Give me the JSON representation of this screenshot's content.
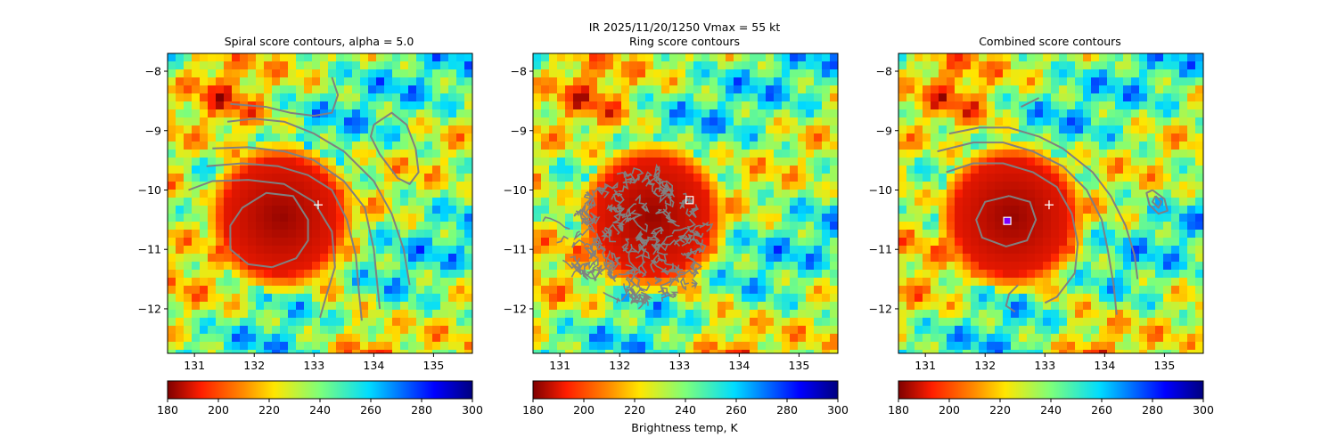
{
  "figure": {
    "suptitle_line1": "IR  2025/11/20/1250    Vmax = 55 kt",
    "colorbar_label": "Brightness temp, K"
  },
  "chart_data": [
    {
      "type": "heatmap",
      "title": "Spiral score contours, alpha =  5.0",
      "xlim": [
        130.55,
        135.65
      ],
      "ylim": [
        -12.75,
        -7.7
      ],
      "xticks": [
        131,
        132,
        133,
        134,
        135
      ],
      "yticks": [
        -8,
        -9,
        -10,
        -11,
        -12
      ],
      "colorbar": {
        "vmin": 180,
        "vmax": 300,
        "ticks": [
          180,
          200,
          220,
          240,
          260,
          280,
          300
        ],
        "colormap": "jet_r"
      },
      "markers": [
        {
          "type": "plus",
          "x": 133.07,
          "y": -10.25,
          "color": "#ffffff"
        }
      ],
      "cold_core_center": [
        132.45,
        -10.45
      ],
      "contour_color": "#808080",
      "contours": [
        [
          [
            132.3,
            -11.3
          ],
          [
            131.9,
            -11.25
          ],
          [
            131.6,
            -11.0
          ],
          [
            131.6,
            -10.6
          ],
          [
            131.8,
            -10.3
          ],
          [
            132.2,
            -10.05
          ],
          [
            132.65,
            -10.1
          ],
          [
            132.9,
            -10.5
          ],
          [
            132.9,
            -10.85
          ],
          [
            132.7,
            -11.15
          ],
          [
            132.3,
            -11.3
          ]
        ],
        [
          [
            130.9,
            -10.0
          ],
          [
            131.3,
            -9.85
          ],
          [
            131.9,
            -9.83
          ],
          [
            132.5,
            -9.9
          ],
          [
            133.0,
            -10.2
          ],
          [
            133.3,
            -10.7
          ],
          [
            133.35,
            -11.3
          ],
          [
            133.2,
            -11.8
          ],
          [
            133.1,
            -12.15
          ]
        ],
        [
          [
            131.2,
            -9.6
          ],
          [
            131.8,
            -9.55
          ],
          [
            132.4,
            -9.6
          ],
          [
            132.9,
            -9.75
          ],
          [
            133.3,
            -10.0
          ],
          [
            133.55,
            -10.5
          ],
          [
            133.7,
            -11.1
          ],
          [
            133.75,
            -11.7
          ],
          [
            133.8,
            -12.2
          ]
        ],
        [
          [
            131.3,
            -9.3
          ],
          [
            131.9,
            -9.28
          ],
          [
            132.5,
            -9.35
          ],
          [
            133.0,
            -9.5
          ],
          [
            133.5,
            -9.85
          ],
          [
            133.85,
            -10.3
          ],
          [
            134.0,
            -11.0
          ],
          [
            134.05,
            -11.5
          ],
          [
            134.1,
            -12.0
          ]
        ],
        [
          [
            131.55,
            -8.85
          ],
          [
            132.0,
            -8.8
          ],
          [
            132.5,
            -8.85
          ],
          [
            133.0,
            -9.05
          ],
          [
            133.5,
            -9.35
          ],
          [
            134.0,
            -9.85
          ],
          [
            134.3,
            -10.4
          ],
          [
            134.5,
            -11.0
          ],
          [
            134.6,
            -11.6
          ]
        ],
        [
          [
            131.6,
            -8.55
          ],
          [
            132.2,
            -8.6
          ],
          [
            132.6,
            -8.7
          ],
          [
            133.0,
            -8.75
          ],
          [
            133.3,
            -8.7
          ],
          [
            133.4,
            -8.4
          ],
          [
            133.3,
            -8.1
          ]
        ],
        [
          [
            134.0,
            -8.9
          ],
          [
            134.3,
            -8.7
          ],
          [
            134.55,
            -8.9
          ],
          [
            134.7,
            -9.3
          ],
          [
            134.75,
            -9.7
          ],
          [
            134.6,
            -9.9
          ],
          [
            134.4,
            -9.8
          ],
          [
            134.1,
            -9.4
          ],
          [
            133.95,
            -9.1
          ],
          [
            134.0,
            -8.9
          ]
        ]
      ]
    },
    {
      "type": "heatmap",
      "title": "Ring score contours",
      "xlim": [
        130.55,
        135.65
      ],
      "ylim": [
        -12.75,
        -7.7
      ],
      "xticks": [
        131,
        132,
        133,
        134,
        135
      ],
      "yticks": [
        -8,
        -9,
        -10,
        -11,
        -12
      ],
      "colorbar": {
        "vmin": 180,
        "vmax": 300,
        "ticks": [
          180,
          200,
          220,
          240,
          260,
          280,
          300
        ],
        "colormap": "jet_r"
      },
      "markers": [
        {
          "type": "square",
          "x": 133.17,
          "y": -10.17,
          "color": "#ffffff"
        }
      ],
      "cold_core_center": [
        132.55,
        -10.45
      ],
      "contour_color": "#808080",
      "ring_region": {
        "center": [
          132.3,
          -10.85
        ],
        "radius_deg": 1.25
      },
      "contours": []
    },
    {
      "type": "heatmap",
      "title": "Combined score contours",
      "xlim": [
        130.55,
        135.65
      ],
      "ylim": [
        -12.75,
        -7.7
      ],
      "xticks": [
        131,
        132,
        133,
        134,
        135
      ],
      "yticks": [
        -8,
        -9,
        -10,
        -11,
        -12
      ],
      "colorbar": {
        "vmin": 180,
        "vmax": 300,
        "ticks": [
          180,
          200,
          220,
          240,
          260,
          280,
          300
        ],
        "colormap": "jet_r"
      },
      "markers": [
        {
          "type": "plus",
          "x": 133.07,
          "y": -10.25,
          "color": "#ffffff"
        },
        {
          "type": "square",
          "x": 132.37,
          "y": -10.52,
          "color": "#ffffff",
          "fill": "#7b00ff"
        }
      ],
      "cold_core_center": [
        132.45,
        -10.45
      ],
      "contour_color": "#808080",
      "contours": [
        [
          [
            132.4,
            -10.1
          ],
          [
            132.75,
            -10.2
          ],
          [
            132.85,
            -10.5
          ],
          [
            132.7,
            -10.85
          ],
          [
            132.35,
            -10.95
          ],
          [
            131.95,
            -10.8
          ],
          [
            131.85,
            -10.5
          ],
          [
            132.0,
            -10.2
          ],
          [
            132.4,
            -10.1
          ]
        ],
        [
          [
            131.35,
            -9.7
          ],
          [
            131.8,
            -9.55
          ],
          [
            132.3,
            -9.55
          ],
          [
            132.8,
            -9.7
          ],
          [
            133.2,
            -9.95
          ],
          [
            133.45,
            -10.4
          ],
          [
            133.55,
            -10.9
          ],
          [
            133.5,
            -11.4
          ],
          [
            133.35,
            -11.6
          ],
          [
            133.2,
            -11.8
          ],
          [
            133.0,
            -11.9
          ]
        ],
        [
          [
            131.2,
            -9.35
          ],
          [
            131.8,
            -9.2
          ],
          [
            132.3,
            -9.2
          ],
          [
            132.8,
            -9.35
          ],
          [
            133.3,
            -9.6
          ],
          [
            133.7,
            -10.0
          ],
          [
            133.95,
            -10.5
          ],
          [
            134.05,
            -11.0
          ],
          [
            134.15,
            -11.6
          ],
          [
            134.2,
            -12.1
          ]
        ],
        [
          [
            131.4,
            -9.05
          ],
          [
            131.9,
            -8.95
          ],
          [
            132.4,
            -8.95
          ],
          [
            132.9,
            -9.1
          ],
          [
            133.3,
            -9.3
          ],
          [
            133.8,
            -9.7
          ],
          [
            134.1,
            -10.1
          ],
          [
            134.35,
            -10.6
          ],
          [
            134.5,
            -11.1
          ],
          [
            134.55,
            -11.5
          ]
        ],
        [
          [
            132.6,
            -8.6
          ],
          [
            132.8,
            -8.5
          ],
          [
            132.9,
            -8.45
          ]
        ],
        [
          [
            132.55,
            -11.6
          ],
          [
            132.4,
            -11.75
          ],
          [
            132.35,
            -11.95
          ],
          [
            132.5,
            -12.05
          ]
        ],
        [
          [
            134.8,
            -10.0
          ],
          [
            135.0,
            -10.15
          ],
          [
            135.05,
            -10.35
          ],
          [
            134.9,
            -10.4
          ],
          [
            134.75,
            -10.25
          ],
          [
            134.7,
            -10.05
          ],
          [
            134.8,
            -10.0
          ]
        ],
        [
          [
            134.85,
            -10.1
          ],
          [
            134.95,
            -10.2
          ],
          [
            134.9,
            -10.3
          ],
          [
            134.8,
            -10.2
          ],
          [
            134.85,
            -10.1
          ]
        ]
      ]
    }
  ]
}
